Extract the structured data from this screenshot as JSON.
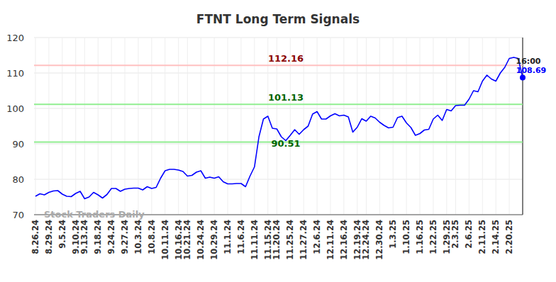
{
  "chart_data": {
    "type": "line",
    "title": "FTNT Long Term Signals",
    "watermark": "Stock Traders Daily",
    "categories": [
      "8.26.24",
      null,
      null,
      "8.29.24",
      null,
      null,
      "9.5.24",
      null,
      null,
      "9.10.24",
      null,
      "9.13.24",
      null,
      null,
      "9.18.24",
      null,
      null,
      "9.24.24",
      null,
      null,
      "9.27.24",
      null,
      null,
      "10.3.24",
      null,
      null,
      "10.8.24",
      null,
      null,
      "10.11.24",
      null,
      null,
      "10.16.24",
      null,
      "10.21.24",
      null,
      null,
      "10.24.24",
      null,
      null,
      "10.29.24",
      null,
      null,
      "11.1.24",
      null,
      null,
      "11.6.24",
      null,
      null,
      "11.11.24",
      null,
      null,
      "11.15.24",
      null,
      "11.20.24",
      null,
      null,
      "11.25.24",
      null,
      null,
      "11.27.24",
      null,
      null,
      "12.6.24",
      null,
      null,
      "12.11.24",
      null,
      null,
      "12.16.24",
      null,
      null,
      "12.19.24",
      null,
      "12.24.24",
      null,
      null,
      "12.30.24",
      null,
      null,
      "1.3.25",
      null,
      null,
      "1.10.25",
      null,
      null,
      "1.16.25",
      null,
      null,
      "1.22.25",
      null,
      null,
      "1.29.25",
      null,
      "2.3.25",
      null,
      null,
      "2.6.25",
      null,
      null,
      "2.11.25",
      null,
      null,
      "2.14.25",
      null,
      null,
      "2.20.25",
      null,
      null,
      null
    ],
    "series": [
      {
        "name": "FTNT",
        "color": "#0000ff",
        "values": [
          75.2,
          75.9,
          75.6,
          76.3,
          76.7,
          76.8,
          75.8,
          75.2,
          75.1,
          76.0,
          76.6,
          74.5,
          75.0,
          76.3,
          75.6,
          74.7,
          75.7,
          77.4,
          77.4,
          76.6,
          77.2,
          77.4,
          77.5,
          77.5,
          77.0,
          77.9,
          77.4,
          77.7,
          80.3,
          82.4,
          82.8,
          82.8,
          82.6,
          82.2,
          80.9,
          81.1,
          82.0,
          82.4,
          80.3,
          80.6,
          80.3,
          80.7,
          79.3,
          78.7,
          78.7,
          78.8,
          78.8,
          77.9,
          80.9,
          83.5,
          92.0,
          97.0,
          97.8,
          94.4,
          94.2,
          92.0,
          90.9,
          92.4,
          94.0,
          92.7,
          94.0,
          95.0,
          98.4,
          99.1,
          97.0,
          97.0,
          97.9,
          98.5,
          97.9,
          98.1,
          97.6,
          93.3,
          94.7,
          97.1,
          96.4,
          97.8,
          97.3,
          96.1,
          95.2,
          94.5,
          94.7,
          97.4,
          97.8,
          95.9,
          94.6,
          92.4,
          92.9,
          93.9,
          94.1,
          97.0,
          98.1,
          96.6,
          99.7,
          99.3,
          100.8,
          100.9,
          100.9,
          102.6,
          105.0,
          104.7,
          107.7,
          109.4,
          108.3,
          107.7,
          110.0,
          111.6,
          114.1,
          114.4,
          114.1,
          108.69
        ]
      }
    ],
    "levels": [
      {
        "value": 112.16,
        "label": "112.16",
        "color": "#ffc0c0",
        "label_color": "#8b0000"
      },
      {
        "value": 101.13,
        "label": "101.13",
        "color": "#90ee90",
        "label_color": "#006400"
      },
      {
        "value": 90.51,
        "label": "90.51",
        "color": "#90ee90",
        "label_color": "#006400"
      }
    ],
    "end_label": {
      "time": "16:00",
      "value": 108.69
    },
    "ylim": [
      70,
      120
    ],
    "yticks": [
      70,
      80,
      90,
      100,
      110,
      120
    ],
    "grid": true
  }
}
